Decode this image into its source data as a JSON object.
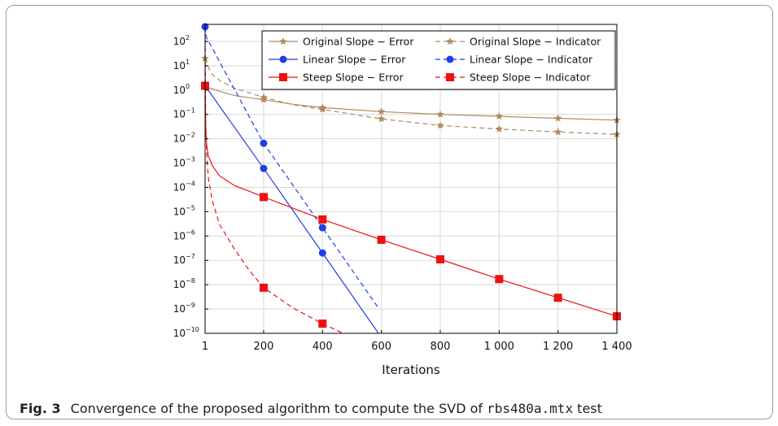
{
  "caption": {
    "label": "Fig. 3",
    "text_before": "Convergence of the proposed algorithm to compute the SVD of ",
    "mono": "rbs480a.mtx",
    "text_after": " test"
  },
  "chart_data": {
    "type": "line",
    "xlabel": "Iterations",
    "ylabel": "",
    "title": "",
    "xlim": [
      1,
      1400
    ],
    "ylim_exponent": [
      -10,
      2.7
    ],
    "y_scale": "log",
    "grid": true,
    "legend_position": "top-right",
    "x_ticks": [
      1,
      200,
      400,
      600,
      800,
      1000,
      1200,
      1400
    ],
    "x_tick_labels": [
      "1",
      "200",
      "400",
      "600",
      "800",
      "1 000",
      "1 200",
      "1 400"
    ],
    "y_tick_exponents": [
      -10,
      -9,
      -8,
      -7,
      -6,
      -5,
      -4,
      -3,
      -2,
      -1,
      0,
      1,
      2
    ],
    "y_tick_labels": [
      "10",
      "10",
      "10",
      "10",
      "10",
      "10",
      "10",
      "10",
      "10",
      "10",
      "10",
      "10",
      "10"
    ],
    "y_tick_superscripts": [
      "−10",
      "−9",
      "−8",
      "−7",
      "−6",
      "−5",
      "−4",
      "−3",
      "−2",
      "−1",
      "0",
      "1",
      "2"
    ],
    "series": [
      {
        "name": "Original Slope − Error",
        "color": "#b38a5e",
        "dash": false,
        "marker": "star",
        "x": [
          1,
          50,
          100,
          200,
          300,
          400,
          600,
          800,
          1000,
          1200,
          1400
        ],
        "y": [
          1.4,
          0.9,
          0.6,
          0.4,
          0.26,
          0.19,
          0.13,
          0.1,
          0.083,
          0.069,
          0.058
        ],
        "marker_x": [
          1,
          200,
          400,
          600,
          800,
          1000,
          1200,
          1400
        ]
      },
      {
        "name": "Original Slope − Indicator",
        "color": "#b38a5e",
        "dash": true,
        "marker": "star",
        "x": [
          1,
          20,
          50,
          100,
          200,
          300,
          400,
          600,
          800,
          1000,
          1200,
          1400
        ],
        "y": [
          20,
          5,
          2.5,
          1.2,
          0.5,
          0.25,
          0.16,
          0.065,
          0.035,
          0.025,
          0.019,
          0.015
        ],
        "marker_x": [
          1,
          200,
          400,
          600,
          800,
          1000,
          1200,
          1400
        ]
      },
      {
        "name": "Linear Slope − Error",
        "color": "#1f3ee6",
        "dash": false,
        "marker": "circle",
        "x": [
          1,
          200,
          400,
          590
        ],
        "y": [
          1.5,
          0.0006,
          2e-07,
          1e-10
        ],
        "marker_x": [
          1,
          200,
          400
        ]
      },
      {
        "name": "Linear Slope − Indicator",
        "color": "#1f3ee6",
        "dash": true,
        "marker": "circle",
        "x": [
          1,
          5,
          200,
          400,
          590
        ],
        "y": [
          400,
          150,
          0.0065,
          2.2e-06,
          1.1e-09
        ],
        "marker_x": [
          1,
          200,
          400
        ]
      },
      {
        "name": "Steep Slope − Error",
        "color": "#ee1111",
        "dash": false,
        "marker": "square",
        "x": [
          1,
          3,
          6,
          12,
          25,
          50,
          100,
          150,
          200,
          400,
          600,
          800,
          1000,
          1200,
          1400
        ],
        "y": [
          1.5,
          0.03,
          0.006,
          0.002,
          0.0008,
          0.0003,
          0.00012,
          7e-05,
          4e-05,
          4.8e-06,
          7e-07,
          1.1e-07,
          1.7e-08,
          2.9e-09,
          5e-10
        ],
        "marker_x": [
          1,
          200,
          400,
          600,
          800,
          1000,
          1200,
          1400
        ]
      },
      {
        "name": "Steep Slope − Indicator",
        "color": "#ee1111",
        "dash": true,
        "marker": "square",
        "x": [
          1,
          3,
          6,
          12,
          25,
          50,
          100,
          150,
          200,
          300,
          400,
          470
        ],
        "y": [
          600,
          0.05,
          0.003,
          0.00025,
          3e-05,
          3e-06,
          3e-07,
          4e-08,
          7.5e-09,
          1.1e-09,
          2.5e-10,
          1e-10
        ],
        "marker_x": [
          1,
          200,
          400
        ]
      }
    ]
  }
}
